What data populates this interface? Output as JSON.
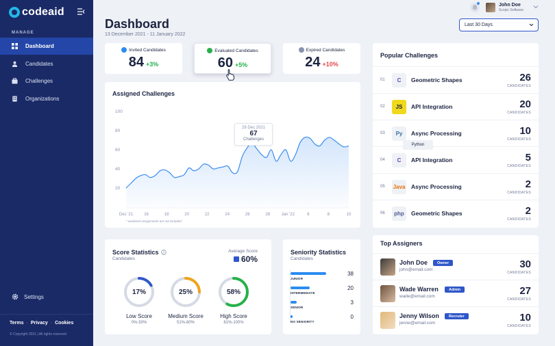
{
  "sidebar": {
    "logo": "codeaid",
    "section_label": "MANAGE",
    "items": [
      {
        "label": "Dashboard",
        "icon": "grid-icon",
        "active": true
      },
      {
        "label": "Candidates",
        "icon": "user-icon"
      },
      {
        "label": "Challenges",
        "icon": "briefcase-icon"
      },
      {
        "label": "Organizations",
        "icon": "building-icon"
      }
    ],
    "settings_label": "Settings",
    "footer_links": [
      "Terms",
      "Privacy",
      "Cookies"
    ],
    "copyright": "© Copyright 2021 | All rights reserved"
  },
  "header": {
    "title": "Dashboard",
    "date_range": "13 December 2021 - 11 January 2022",
    "user_name": "John Doe",
    "user_company": "Scopic Software",
    "filter_value": "Last 30 Days"
  },
  "stats": [
    {
      "label": "Invited Candidates",
      "value": "84",
      "delta": "+3%",
      "trend": "up",
      "icon_color": "#2d8cf0"
    },
    {
      "label": "Evaluated Candidates",
      "value": "60",
      "delta": "+5%",
      "trend": "up",
      "icon_color": "#26b14b"
    },
    {
      "label": "Expired Candidates",
      "value": "24",
      "delta": "+10%",
      "trend": "down",
      "icon_color": "#8a93ad"
    }
  ],
  "assigned": {
    "title": "Assigned Challenges",
    "note": "* weekend assignments are not included",
    "tooltip": {
      "date": "29 Dec 2021",
      "value": "67",
      "label": "Challenges"
    }
  },
  "chart_data": {
    "type": "area",
    "title": "Assigned Challenges",
    "xlabel": "",
    "ylabel": "",
    "ylim": [
      0,
      100
    ],
    "yticks": [
      "100",
      "80",
      "60",
      "40",
      "20"
    ],
    "x_ticks": [
      "Dec '21",
      "16",
      "18",
      "20",
      "22",
      "24",
      "26",
      "28",
      "Jan '22",
      "6",
      "8",
      "10"
    ],
    "x": [
      0,
      1,
      2,
      3,
      4,
      5,
      6,
      7,
      8,
      9,
      10,
      11,
      12,
      13,
      14,
      15,
      16,
      17,
      18,
      19,
      20,
      21,
      22,
      23,
      24,
      25,
      26,
      27,
      28,
      29,
      30,
      31,
      32,
      33,
      34,
      35,
      36,
      37,
      38,
      39,
      40,
      41,
      42,
      43,
      44,
      45,
      46
    ],
    "values": [
      20,
      25,
      30,
      33,
      34,
      31,
      33,
      38,
      39,
      36,
      31,
      32,
      34,
      41,
      38,
      40,
      45,
      44,
      40,
      41,
      42,
      43,
      36,
      37,
      53,
      62,
      67,
      61,
      55,
      52,
      60,
      48,
      55,
      60,
      48,
      55,
      68,
      73,
      72,
      66,
      64,
      70,
      73,
      70,
      66,
      63,
      64
    ],
    "highlight": {
      "x": 26,
      "value": 67
    },
    "grid": false
  },
  "popular": {
    "title": "Popular Challenges",
    "count_label": "CANDIDATES",
    "items": [
      {
        "num": "01",
        "name": "Geometric Shapes",
        "count": "26",
        "icon": "csharp-icon",
        "badge": "C",
        "color": "#6b3fb0"
      },
      {
        "num": "02",
        "name": "API Integration",
        "count": "20",
        "icon": "javascript-icon",
        "badge": "JS",
        "color": "#f0d91c"
      },
      {
        "num": "03",
        "name": "Async Processing",
        "count": "10",
        "icon": "python-icon",
        "badge": "Py",
        "color": "#3572a5"
      },
      {
        "num": "04",
        "name": "API Integration",
        "count": "5",
        "icon": "csharp-icon",
        "badge": "C",
        "color": "#6b3fb0"
      },
      {
        "num": "05",
        "name": "Async Processing",
        "count": "2",
        "icon": "java-icon",
        "badge": "Java",
        "color": "#e76f00"
      },
      {
        "num": "06",
        "name": "Geometric Shapes",
        "count": "2",
        "icon": "php-icon",
        "badge": "php",
        "color": "#4f5b93"
      }
    ],
    "hover_tip": "Python"
  },
  "assigners": {
    "title": "Top Assigners",
    "count_label": "CANDIDATES",
    "items": [
      {
        "name": "John Doe",
        "email": "john@email.com",
        "role": "Owner",
        "count": "30"
      },
      {
        "name": "Wade Warren",
        "email": "wade@email.com",
        "role": "Admin",
        "count": "27"
      },
      {
        "name": "Jenny Wilson",
        "email": "jenne@email.com",
        "role": "Recruter",
        "count": "10"
      }
    ]
  },
  "score": {
    "title": "Score Statistics",
    "subtitle": "Candidates",
    "avg_label": "Average Score",
    "avg_value": "60%",
    "rings": [
      {
        "value": "17%",
        "fraction": 0.17,
        "label": "Low Score",
        "range": "0%-50%",
        "color": "#2f57c9"
      },
      {
        "value": "25%",
        "fraction": 0.25,
        "label": "Medium Score",
        "range": "51%-80%",
        "color": "#f0a31c"
      },
      {
        "value": "58%",
        "fraction": 0.58,
        "label": "High Score",
        "range": "81%-100%",
        "color": "#26b14b"
      }
    ]
  },
  "seniority": {
    "title": "Seniority Statistics",
    "subtitle": "Candidates",
    "items": [
      {
        "label": "JUNIOR",
        "value": "38",
        "fraction": 1.0
      },
      {
        "label": "INTERMEDIATE",
        "value": "20",
        "fraction": 0.53
      },
      {
        "label": "SENIOR",
        "value": "3",
        "fraction": 0.18
      },
      {
        "label": "NO SENIORITY",
        "value": "0",
        "fraction": 0.05
      }
    ]
  }
}
